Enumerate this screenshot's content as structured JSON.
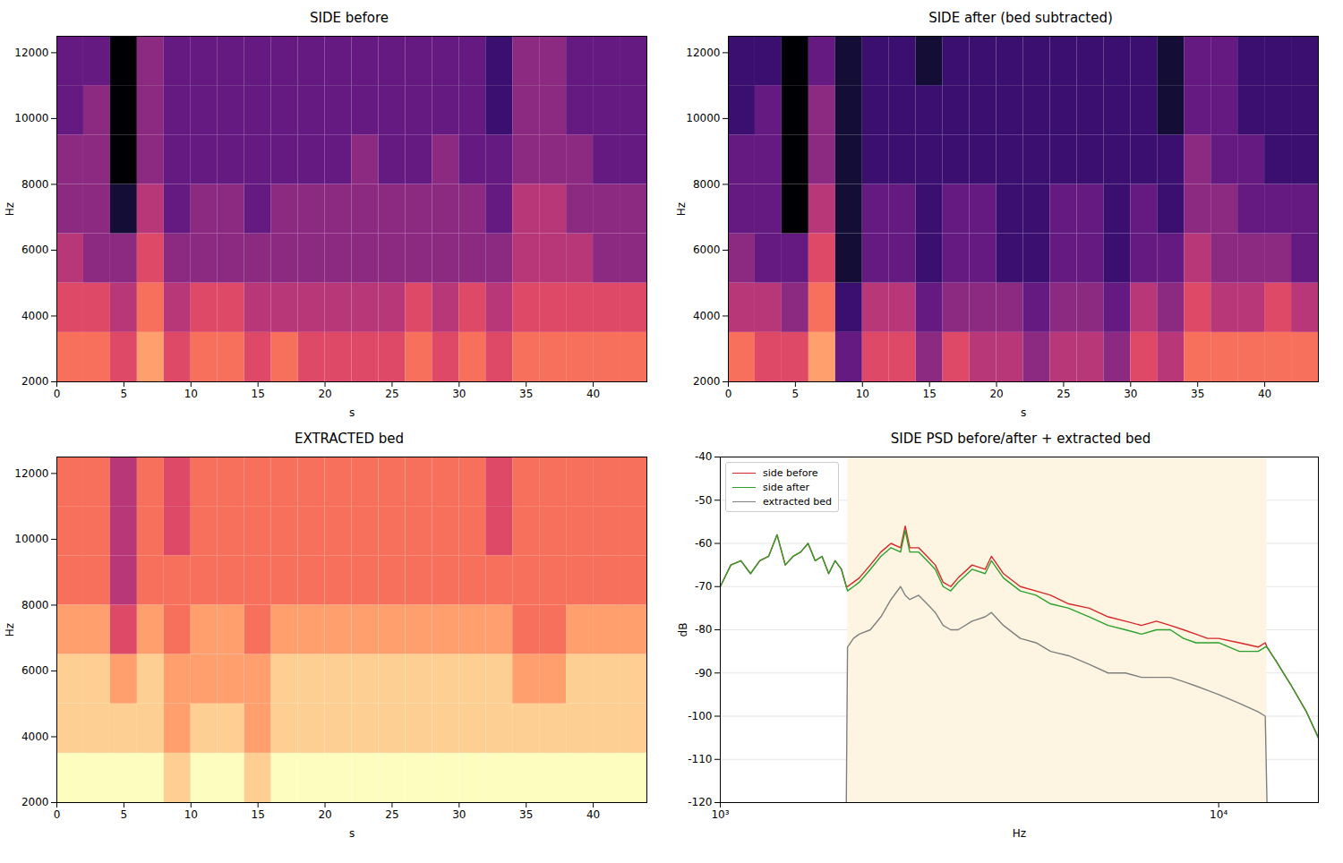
{
  "chart_data": [
    {
      "type": "heatmap",
      "title": "SIDE before",
      "xlabel": "s",
      "ylabel": "Hz",
      "xlim": [
        0,
        44
      ],
      "ylim": [
        2000,
        12500
      ],
      "xticks": [
        0,
        5,
        10,
        15,
        20,
        25,
        30,
        35,
        40
      ],
      "yticks": [
        2000,
        4000,
        6000,
        8000,
        10000,
        12000
      ],
      "color": "magma",
      "color_range": [
        0,
        10
      ],
      "x_edges": [
        0,
        2,
        4,
        6,
        8,
        10,
        12,
        14,
        16,
        18,
        20,
        22,
        24,
        26,
        28,
        30,
        32,
        34,
        36,
        38,
        40,
        42,
        44
      ],
      "y_edges": [
        2000,
        3500,
        5000,
        6500,
        8000,
        9500,
        11000,
        12500
      ],
      "cells": [
        [
          7,
          7,
          6,
          8,
          6,
          7,
          7,
          6,
          7,
          6,
          6,
          6,
          6,
          7,
          6,
          7,
          6,
          7,
          7,
          7,
          7,
          7
        ],
        [
          6,
          6,
          5,
          7,
          5,
          6,
          6,
          5,
          5,
          5,
          5,
          5,
          5,
          6,
          5,
          6,
          5,
          6,
          6,
          6,
          6,
          6
        ],
        [
          5,
          4,
          4,
          6,
          4,
          4,
          4,
          4,
          4,
          4,
          4,
          4,
          4,
          4,
          4,
          4,
          4,
          5,
          5,
          5,
          4,
          4
        ],
        [
          4,
          4,
          1,
          5,
          3,
          4,
          4,
          3,
          4,
          4,
          4,
          4,
          4,
          4,
          4,
          4,
          3,
          5,
          5,
          4,
          4,
          4
        ],
        [
          4,
          4,
          0,
          4,
          3,
          3,
          3,
          3,
          3,
          3,
          3,
          4,
          3,
          3,
          4,
          3,
          3,
          4,
          4,
          4,
          3,
          3
        ],
        [
          3,
          4,
          0,
          4,
          3,
          3,
          3,
          3,
          3,
          3,
          3,
          3,
          3,
          3,
          3,
          3,
          2,
          4,
          4,
          3,
          3,
          3
        ],
        [
          3,
          3,
          0,
          4,
          3,
          3,
          3,
          3,
          3,
          3,
          3,
          3,
          3,
          3,
          3,
          3,
          2,
          4,
          4,
          3,
          3,
          3
        ]
      ]
    },
    {
      "type": "heatmap",
      "title": "SIDE after (bed subtracted)",
      "xlabel": "s",
      "ylabel": "Hz",
      "xlim": [
        0,
        44
      ],
      "ylim": [
        2000,
        12500
      ],
      "xticks": [
        0,
        5,
        10,
        15,
        20,
        25,
        30,
        35,
        40
      ],
      "yticks": [
        2000,
        4000,
        6000,
        8000,
        10000,
        12000
      ],
      "color": "magma",
      "color_range": [
        0,
        10
      ],
      "x_edges": [
        0,
        2,
        4,
        6,
        8,
        10,
        12,
        14,
        16,
        18,
        20,
        22,
        24,
        26,
        28,
        30,
        32,
        34,
        36,
        38,
        40,
        42,
        44
      ],
      "y_edges": [
        2000,
        3500,
        5000,
        6500,
        8000,
        9500,
        11000,
        12500
      ],
      "cells": [
        [
          7,
          6,
          6,
          8,
          3,
          6,
          6,
          4,
          6,
          5,
          5,
          4,
          5,
          5,
          4,
          6,
          5,
          7,
          7,
          7,
          7,
          7
        ],
        [
          5,
          5,
          4,
          7,
          2,
          5,
          5,
          3,
          4,
          4,
          4,
          3,
          4,
          4,
          3,
          5,
          4,
          6,
          5,
          5,
          6,
          5
        ],
        [
          4,
          3,
          3,
          6,
          1,
          3,
          3,
          2,
          3,
          3,
          2,
          2,
          3,
          3,
          2,
          3,
          3,
          5,
          4,
          4,
          4,
          3
        ],
        [
          3,
          3,
          0,
          5,
          1,
          3,
          3,
          2,
          3,
          3,
          2,
          2,
          3,
          3,
          2,
          3,
          2,
          4,
          4,
          3,
          3,
          3
        ],
        [
          3,
          3,
          0,
          4,
          1,
          2,
          2,
          2,
          2,
          2,
          2,
          2,
          2,
          2,
          2,
          2,
          2,
          4,
          3,
          3,
          2,
          2
        ],
        [
          2,
          3,
          0,
          4,
          1,
          2,
          2,
          2,
          2,
          2,
          2,
          2,
          2,
          2,
          2,
          2,
          1,
          3,
          3,
          2,
          2,
          2
        ],
        [
          2,
          2,
          0,
          3,
          1,
          2,
          2,
          1,
          2,
          2,
          2,
          2,
          2,
          2,
          2,
          2,
          1,
          3,
          3,
          2,
          2,
          2
        ]
      ]
    },
    {
      "type": "heatmap",
      "title": "EXTRACTED bed",
      "xlabel": "s",
      "ylabel": "Hz",
      "xlim": [
        0,
        44
      ],
      "ylim": [
        2000,
        12500
      ],
      "xticks": [
        0,
        5,
        10,
        15,
        20,
        25,
        30,
        35,
        40
      ],
      "yticks": [
        2000,
        4000,
        6000,
        8000,
        10000,
        12000
      ],
      "color": "magma",
      "color_range": [
        0,
        10
      ],
      "x_edges": [
        0,
        2,
        4,
        6,
        8,
        10,
        12,
        14,
        16,
        18,
        20,
        22,
        24,
        26,
        28,
        30,
        32,
        34,
        36,
        38,
        40,
        42,
        44
      ],
      "y_edges": [
        2000,
        3500,
        5000,
        6500,
        8000,
        9500,
        11000,
        12500
      ],
      "cells": [
        [
          10,
          10,
          10,
          10,
          9,
          10,
          10,
          9,
          10,
          10,
          10,
          10,
          10,
          10,
          10,
          10,
          10,
          10,
          10,
          10,
          10,
          10
        ],
        [
          9,
          9,
          9,
          9,
          8,
          9,
          9,
          8,
          9,
          9,
          9,
          9,
          9,
          9,
          9,
          9,
          9,
          9,
          9,
          9,
          9,
          9
        ],
        [
          9,
          9,
          8,
          9,
          8,
          8,
          8,
          8,
          9,
          9,
          9,
          9,
          9,
          9,
          9,
          9,
          9,
          8,
          8,
          9,
          9,
          9
        ],
        [
          8,
          8,
          6,
          8,
          7,
          8,
          8,
          7,
          8,
          8,
          8,
          8,
          8,
          8,
          8,
          8,
          8,
          7,
          7,
          8,
          8,
          8
        ],
        [
          7,
          7,
          5,
          7,
          7,
          7,
          7,
          7,
          7,
          7,
          7,
          7,
          7,
          7,
          7,
          7,
          7,
          7,
          7,
          7,
          7,
          7
        ],
        [
          7,
          7,
          5,
          7,
          6,
          7,
          7,
          7,
          7,
          7,
          7,
          7,
          7,
          7,
          7,
          7,
          6,
          7,
          7,
          7,
          7,
          7
        ],
        [
          7,
          7,
          5,
          7,
          6,
          7,
          7,
          7,
          7,
          7,
          7,
          7,
          7,
          7,
          7,
          7,
          6,
          7,
          7,
          7,
          7,
          7
        ]
      ]
    },
    {
      "type": "line",
      "title": "SIDE PSD before/after + extracted bed",
      "xlabel": "Hz",
      "ylabel": "dB",
      "log": "x",
      "grid": true,
      "legend": "upper left",
      "xlim": [
        1000,
        15850
      ],
      "ylim": [
        -120,
        -40
      ],
      "xticks": [
        {
          "value": 1000,
          "label": "10³"
        },
        {
          "value": 10000,
          "label": "10⁴"
        }
      ],
      "yticks": [
        -120,
        -110,
        -100,
        -90,
        -80,
        -70,
        -60,
        -50,
        -40
      ],
      "shaded_range": {
        "x": [
          1800,
          12500
        ],
        "color": "#fdf5e2"
      },
      "x": [
        1000,
        1050,
        1100,
        1150,
        1200,
        1250,
        1300,
        1350,
        1400,
        1450,
        1500,
        1550,
        1600,
        1650,
        1700,
        1750,
        1790,
        1800,
        1850,
        1900,
        2000,
        2100,
        2200,
        2300,
        2350,
        2400,
        2500,
        2600,
        2700,
        2800,
        2900,
        3000,
        3200,
        3400,
        3500,
        3700,
        4000,
        4300,
        4600,
        5000,
        5500,
        6000,
        6500,
        7000,
        7500,
        8000,
        8500,
        9000,
        9500,
        10000,
        11000,
        12000,
        12400,
        12500,
        13000,
        14000,
        15000,
        15850
      ],
      "series": [
        {
          "name": "side before",
          "color": "#d62728",
          "values": [
            -70,
            -65,
            -64,
            -67,
            -64,
            -63,
            -58,
            -65,
            -63,
            -62,
            -60,
            -64,
            -63,
            -67,
            -64,
            -66,
            -70,
            -70,
            -69,
            -68,
            -65,
            -62,
            -60,
            -61,
            -56,
            -61,
            -61,
            -63,
            -65,
            -69,
            -70,
            -68,
            -65,
            -66,
            -63,
            -67,
            -70,
            -71,
            -72,
            -74,
            -75,
            -77,
            -78,
            -79,
            -78,
            -79,
            -80,
            -81,
            -82,
            -82,
            -83,
            -84,
            -83,
            -84,
            -87,
            -93,
            -99,
            -105
          ]
        },
        {
          "name": "side after",
          "color": "#2ca02c",
          "values": [
            -70,
            -65,
            -64,
            -67,
            -64,
            -63,
            -58,
            -65,
            -63,
            -62,
            -60,
            -64,
            -63,
            -67,
            -64,
            -66,
            -70,
            -71,
            -70,
            -69,
            -66,
            -63,
            -61,
            -62,
            -57,
            -62,
            -62,
            -64,
            -66,
            -70,
            -71,
            -69,
            -66,
            -67,
            -64,
            -68,
            -71,
            -72,
            -74,
            -75,
            -77,
            -79,
            -80,
            -81,
            -80,
            -80,
            -82,
            -83,
            -83,
            -83,
            -85,
            -85,
            -84,
            -84,
            -87,
            -93,
            -99,
            -105
          ]
        },
        {
          "name": "extracted bed",
          "color": "#808080",
          "values": [
            null,
            null,
            null,
            null,
            null,
            null,
            null,
            null,
            null,
            null,
            null,
            null,
            null,
            null,
            null,
            null,
            -120,
            -84,
            -82,
            -81,
            -80,
            -77,
            -73,
            -70,
            -72,
            -73,
            -72,
            -74,
            -76,
            -79,
            -80,
            -80,
            -78,
            -77,
            -76,
            -79,
            -82,
            -83,
            -85,
            -86,
            -88,
            -90,
            -90,
            -91,
            -91,
            -91,
            -92,
            -93,
            -94,
            -95,
            -97,
            -99,
            -100,
            -120,
            null,
            null,
            null,
            null
          ]
        }
      ]
    }
  ]
}
